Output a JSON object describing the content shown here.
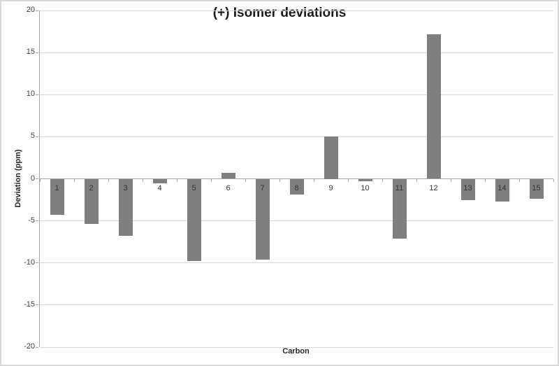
{
  "title": "(+) Isomer deviations",
  "axes": {
    "y_label": "Deviation (ppm)",
    "x_label": "Carbon",
    "y_ticks": [
      20,
      15,
      10,
      5,
      0,
      -5,
      -10,
      -15,
      -20
    ]
  },
  "colors": {
    "bar": "#7f7f7f",
    "gridline": "#d9d9d9",
    "axis_line": "#a6a6a6",
    "tick_label": "#404040",
    "title_text": "#1a1a1a"
  },
  "chart_data": {
    "type": "bar",
    "title": "(+) Isomer deviations",
    "xlabel": "Carbon",
    "ylabel": "Deviation (ppm)",
    "categories": [
      "1",
      "2",
      "3",
      "4",
      "5",
      "6",
      "7",
      "8",
      "9",
      "10",
      "11",
      "12",
      "13",
      "14",
      "15"
    ],
    "values": [
      -4.3,
      -5.4,
      -6.8,
      -0.5,
      -9.8,
      0.7,
      -9.6,
      -1.9,
      5.0,
      -0.3,
      -7.1,
      17.2,
      -2.5,
      -2.7,
      -2.4
    ],
    "ylim": [
      -20,
      20
    ],
    "ytick_step": 5,
    "grid": true,
    "legend": false,
    "bar_color": "#7f7f7f"
  }
}
